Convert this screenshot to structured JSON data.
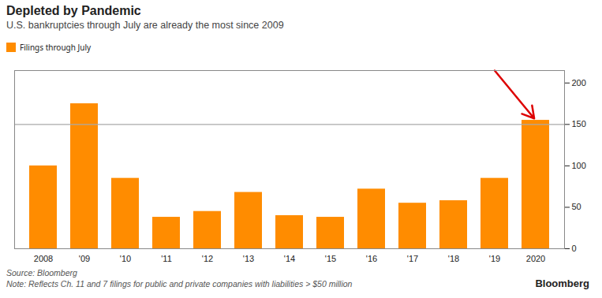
{
  "chart_data": {
    "type": "bar",
    "title": "Depleted by Pandemic",
    "subtitle": "U.S. bankruptcies through July are already the most since 2009",
    "categories": [
      "2008",
      "'09",
      "'10",
      "'11",
      "'12",
      "'13",
      "'14",
      "'15",
      "'16",
      "'17",
      "'18",
      "'19",
      "2020"
    ],
    "series": [
      {
        "name": "Filings through July",
        "color": "#FF8C00",
        "values": [
          100,
          175,
          85,
          38,
          45,
          68,
          40,
          38,
          72,
          55,
          58,
          85,
          155
        ]
      }
    ],
    "ylim": [
      0,
      215
    ],
    "yticks": [
      0,
      50,
      100,
      150,
      200
    ],
    "grid": false,
    "legend": "upper left",
    "reference_line": {
      "value": 150,
      "color": "#AAAAAA"
    },
    "annotations": [
      {
        "arrow_to": "2020",
        "color": "#DD0000"
      }
    ],
    "source": "Source: Bloomberg",
    "note": "Note: Reflects Ch. 11 and 7 filings for public and private companies with liabilities > $50 million",
    "credit": "Bloomberg"
  }
}
